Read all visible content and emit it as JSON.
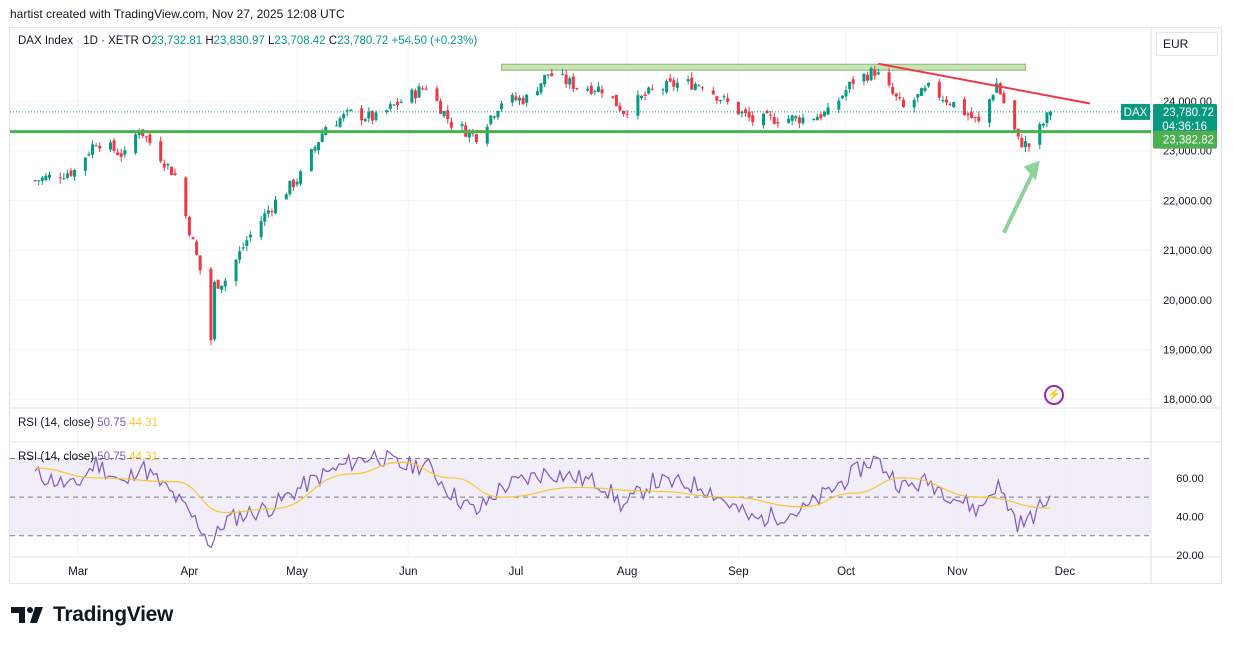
{
  "header": {
    "text": "hartist created with TradingView.com, Nov 27, 2025 12:08 UTC"
  },
  "symbol": {
    "name": "DAX Index · 1D · XETR",
    "o_label": "O",
    "o_value": "23,732.81",
    "h_label": "H",
    "h_value": "23,830.97",
    "l_label": "L",
    "l_value": "23,708.42",
    "c_label": "C",
    "c_value": "23,780.72",
    "change": "+54.50 (+0.23%)"
  },
  "currency": "EUR",
  "price_badges": {
    "ticker": "DAX",
    "last_price": "23,780.72",
    "countdown": "04:36:16",
    "level": "23,382.82"
  },
  "rsi": {
    "label": "RSI (14, close)",
    "value": "50.75",
    "ma_value": "44.31"
  },
  "logo": {
    "text": "TradingView"
  },
  "colors": {
    "up": "#089981",
    "down": "#f23645",
    "support": "#4caf50",
    "resistance_zone": "#c8e6b5",
    "trendline": "#f23645",
    "arrow": "#8fd39a",
    "rsi": "#7e57c2",
    "rsi_ma": "#f7c530",
    "rsi_band": "#ede7f6"
  },
  "chart_data": [
    {
      "type": "candlestick",
      "title": "DAX Index · 1D · XETR",
      "y_ticks": [
        "24,000.00",
        "23,000.00",
        "22,000.00",
        "21,000.00",
        "20,000.00",
        "19,000.00",
        "18,000.00"
      ],
      "y_tick_values": [
        24000,
        23000,
        22000,
        21000,
        20000,
        19000,
        18000
      ],
      "x_ticks": [
        "Mar",
        "Apr",
        "May",
        "Jun",
        "Jul",
        "Aug",
        "Sep",
        "Oct",
        "Nov",
        "Dec"
      ],
      "support_level": 23382.82,
      "resistance_zone": [
        24620,
        24740
      ],
      "trendline": {
        "from": [
          "2025-10-10",
          24750
        ],
        "to": [
          "2025-12-08",
          23950
        ]
      },
      "close_points": [
        [
          "2025-02-17",
          22400
        ],
        [
          "2025-02-28",
          22600
        ],
        [
          "2025-03-06",
          23200
        ],
        [
          "2025-03-14",
          22900
        ],
        [
          "2025-03-18",
          23450
        ],
        [
          "2025-03-28",
          22500
        ],
        [
          "2025-04-04",
          20600
        ],
        [
          "2025-04-07",
          19200
        ],
        [
          "2025-04-08",
          20300
        ],
        [
          "2025-04-11",
          20400
        ],
        [
          "2025-04-17",
          21200
        ],
        [
          "2025-04-24",
          21900
        ],
        [
          "2025-05-02",
          22500
        ],
        [
          "2025-05-09",
          23500
        ],
        [
          "2025-05-16",
          23750
        ],
        [
          "2025-05-23",
          23650
        ],
        [
          "2025-05-30",
          24000
        ],
        [
          "2025-06-06",
          24300
        ],
        [
          "2025-06-13",
          23550
        ],
        [
          "2025-06-20",
          23300
        ],
        [
          "2025-06-27",
          24000
        ],
        [
          "2025-07-04",
          24050
        ],
        [
          "2025-07-10",
          24550
        ],
        [
          "2025-07-18",
          24300
        ],
        [
          "2025-07-25",
          24250
        ],
        [
          "2025-07-31",
          23800
        ],
        [
          "2025-08-08",
          24200
        ],
        [
          "2025-08-15",
          24350
        ],
        [
          "2025-08-22",
          24350
        ],
        [
          "2025-08-29",
          23950
        ],
        [
          "2025-09-05",
          23600
        ],
        [
          "2025-09-12",
          23650
        ],
        [
          "2025-09-19",
          23650
        ],
        [
          "2025-09-26",
          23750
        ],
        [
          "2025-10-03",
          24400
        ],
        [
          "2025-10-09",
          24600
        ],
        [
          "2025-10-17",
          23850
        ],
        [
          "2025-10-24",
          24250
        ],
        [
          "2025-10-31",
          23950
        ],
        [
          "2025-11-07",
          23550
        ],
        [
          "2025-11-12",
          24350
        ],
        [
          "2025-11-18",
          23200
        ],
        [
          "2025-11-21",
          23100
        ],
        [
          "2025-11-27",
          23780.72
        ]
      ]
    },
    {
      "type": "line",
      "title": "RSI (14, close)",
      "y_ticks": [
        "60.00",
        "40.00",
        "20.00"
      ],
      "y_tick_values": [
        60,
        40,
        20
      ],
      "bands": [
        30,
        50,
        70
      ],
      "series": [
        {
          "name": "RSI",
          "points": [
            [
              "2025-02-17",
              62
            ],
            [
              "2025-02-28",
              55
            ],
            [
              "2025-03-06",
              68
            ],
            [
              "2025-03-14",
              56
            ],
            [
              "2025-03-18",
              67
            ],
            [
              "2025-03-28",
              50
            ],
            [
              "2025-04-04",
              35
            ],
            [
              "2025-04-07",
              25
            ],
            [
              "2025-04-11",
              38
            ],
            [
              "2025-04-24",
              45
            ],
            [
              "2025-05-02",
              55
            ],
            [
              "2025-05-09",
              62
            ],
            [
              "2025-05-16",
              68
            ],
            [
              "2025-05-23",
              72
            ],
            [
              "2025-05-30",
              66
            ],
            [
              "2025-06-06",
              67
            ],
            [
              "2025-06-13",
              52
            ],
            [
              "2025-06-20",
              42
            ],
            [
              "2025-06-27",
              55
            ],
            [
              "2025-07-10",
              63
            ],
            [
              "2025-07-25",
              57
            ],
            [
              "2025-07-31",
              45
            ],
            [
              "2025-08-08",
              58
            ],
            [
              "2025-08-22",
              56
            ],
            [
              "2025-09-05",
              38
            ],
            [
              "2025-09-19",
              43
            ],
            [
              "2025-10-03",
              62
            ],
            [
              "2025-10-09",
              70
            ],
            [
              "2025-10-17",
              55
            ],
            [
              "2025-10-24",
              58
            ],
            [
              "2025-11-07",
              43
            ],
            [
              "2025-11-12",
              57
            ],
            [
              "2025-11-18",
              36
            ],
            [
              "2025-11-21",
              38
            ],
            [
              "2025-11-27",
              50.75
            ]
          ]
        },
        {
          "name": "RSI-based MA",
          "points": [
            [
              "2025-02-17",
              65
            ],
            [
              "2025-03-06",
              60
            ],
            [
              "2025-03-28",
              58
            ],
            [
              "2025-04-11",
              42
            ],
            [
              "2025-04-24",
              44
            ],
            [
              "2025-05-16",
              62
            ],
            [
              "2025-05-30",
              68
            ],
            [
              "2025-06-13",
              60
            ],
            [
              "2025-06-27",
              50
            ],
            [
              "2025-07-18",
              55
            ],
            [
              "2025-08-08",
              53
            ],
            [
              "2025-08-29",
              50
            ],
            [
              "2025-09-19",
              45
            ],
            [
              "2025-10-03",
              52
            ],
            [
              "2025-10-17",
              60
            ],
            [
              "2025-11-07",
              50
            ],
            [
              "2025-11-27",
              44.31
            ]
          ]
        }
      ]
    }
  ]
}
